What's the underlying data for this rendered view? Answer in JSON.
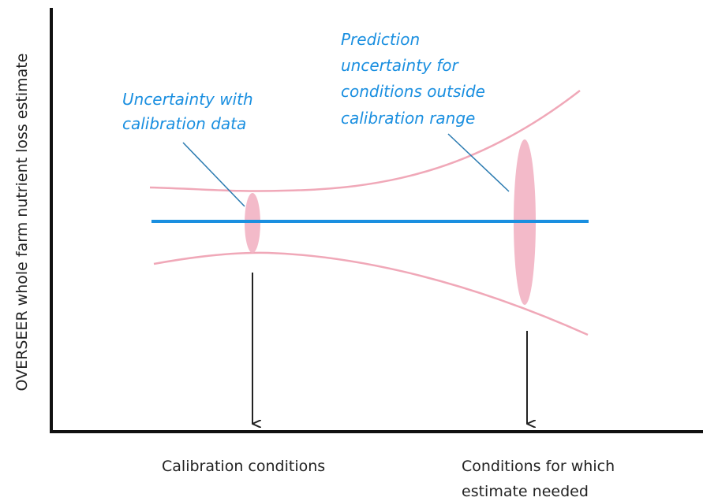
{
  "y_axis_label": "OVERSEER whole farm nutrient loss estimate",
  "annotations": {
    "calibration_uncertainty": [
      "Uncertainty with",
      "calibration data"
    ],
    "prediction_uncertainty": [
      "Prediction",
      "uncertainty for",
      "conditions outside",
      "calibration range"
    ]
  },
  "x_labels": {
    "calibration": [
      "Calibration conditions"
    ],
    "target": [
      "Conditions for which",
      "estimate needed"
    ]
  }
}
